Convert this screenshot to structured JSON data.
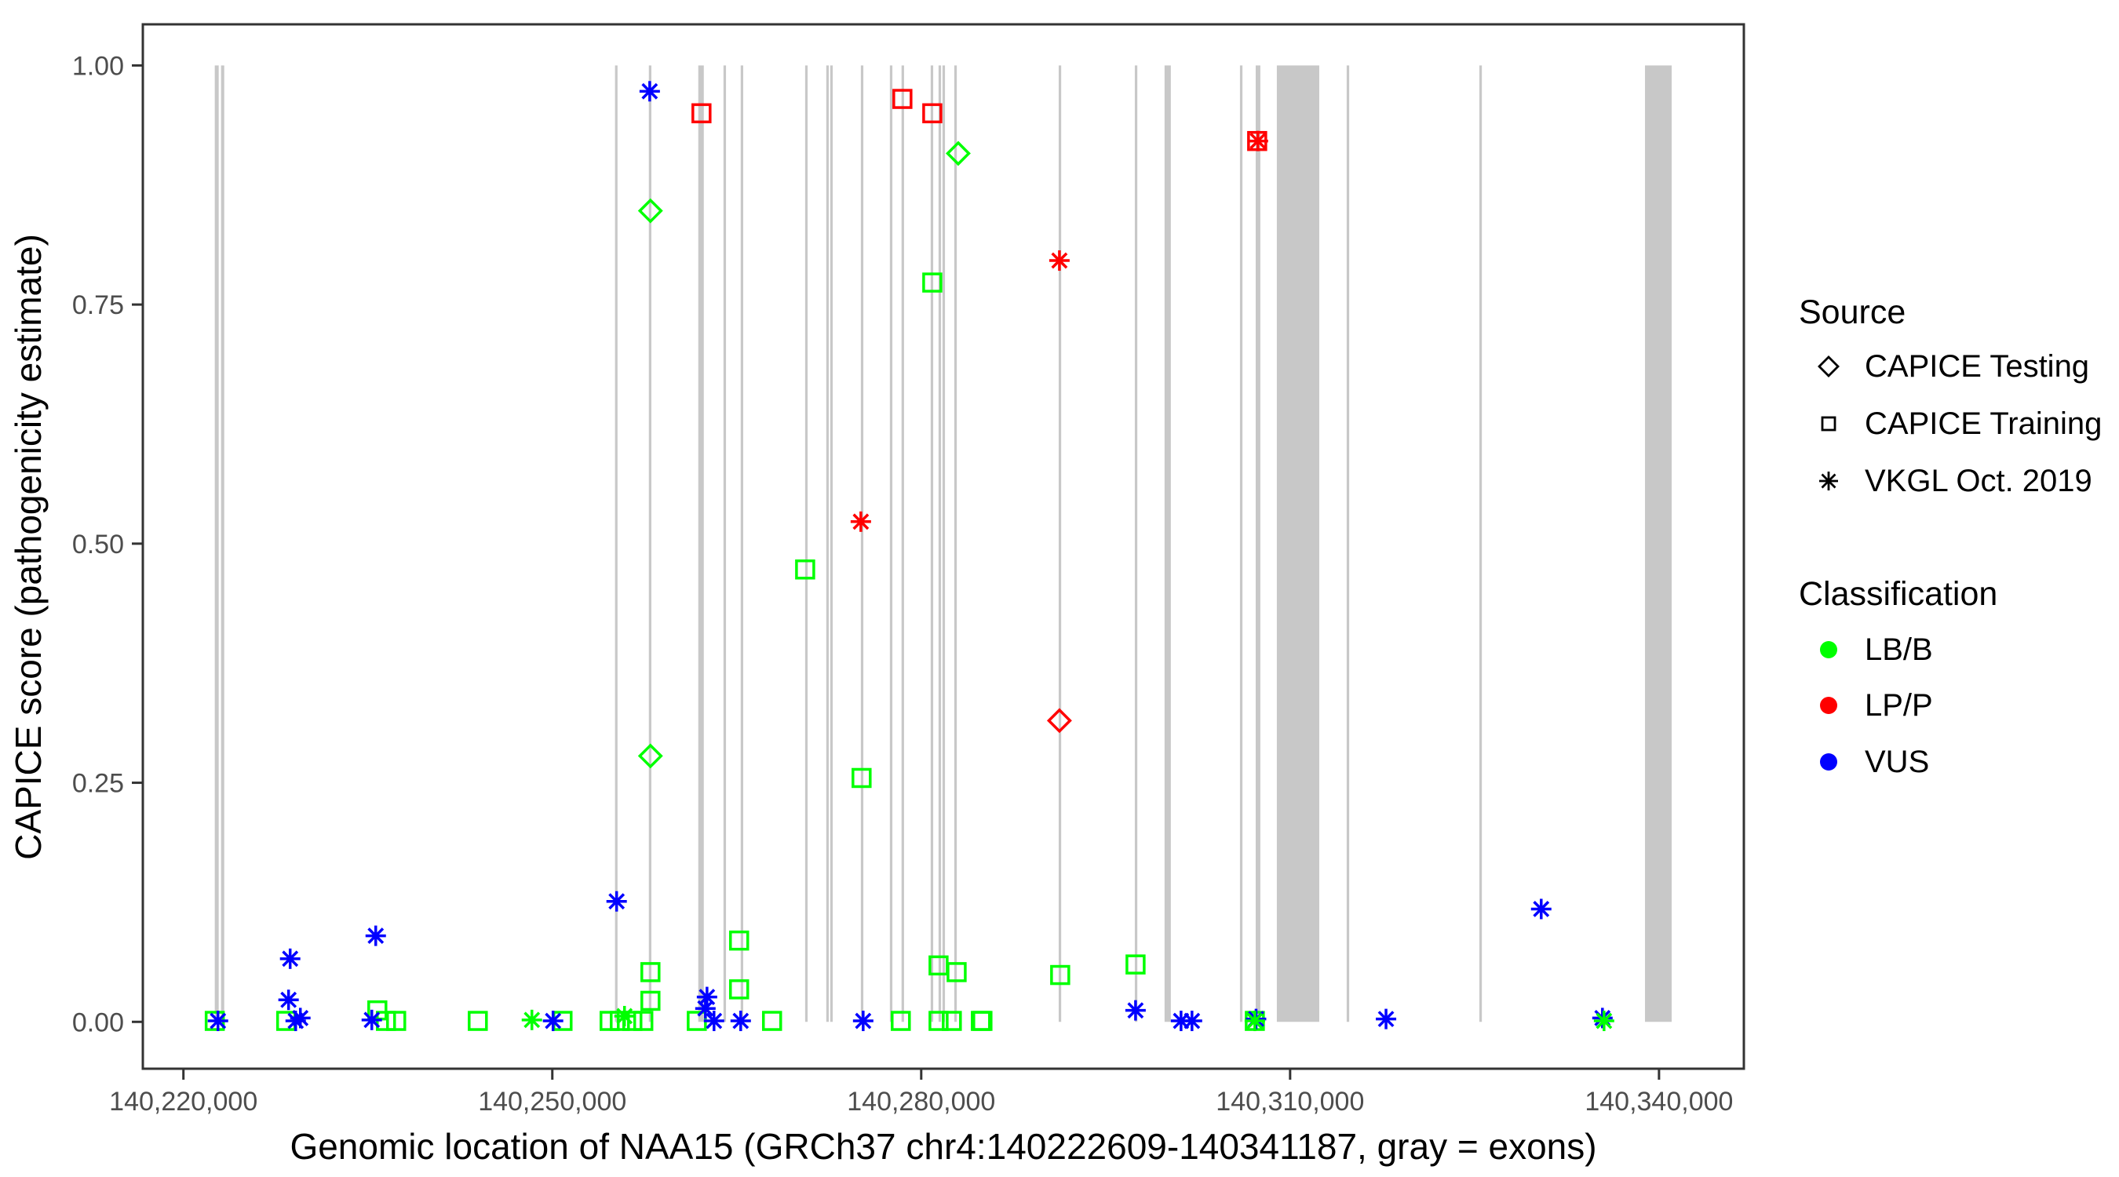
{
  "chart_data": {
    "type": "scatter",
    "title": "",
    "xlabel": "Genomic location of NAA15 (GRCh37 chr4:140222609-140341187, gray = exons)",
    "ylabel": "CAPICE score (pathogenicity estimate)",
    "xlim": [
      140216700,
      140346900
    ],
    "ylim": [
      -0.049,
      1.043
    ],
    "grid": false,
    "legend_position": "right",
    "x_ticks": {
      "values": [
        140220000,
        140250000,
        140280000,
        140310000,
        140340000
      ],
      "labels": [
        "140,220,000",
        "140,250,000",
        "140,280,000",
        "140,310,000",
        "140,340,000"
      ]
    },
    "y_ticks": {
      "values": [
        0,
        0.25,
        0.5,
        0.75,
        1.0
      ],
      "labels": [
        "0.00",
        "0.25",
        "0.50",
        "0.75",
        "1.00"
      ]
    },
    "exon_color": "#C8C8C8",
    "exon_value_span": [
      0,
      1
    ],
    "exons": [
      [
        140222550,
        140222870
      ],
      [
        140223060,
        140223320
      ],
      [
        140255100,
        140255300
      ],
      [
        140257850,
        140258040
      ],
      [
        140261870,
        140262320
      ],
      [
        140263920,
        140264110
      ],
      [
        140265320,
        140265510
      ],
      [
        140270560,
        140270750
      ],
      [
        140272280,
        140272470
      ],
      [
        140272600,
        140272790
      ],
      [
        140275090,
        140275280
      ],
      [
        140277450,
        140277640
      ],
      [
        140278400,
        140278600
      ],
      [
        140280770,
        140280960
      ],
      [
        140281410,
        140281600
      ],
      [
        140281730,
        140281920
      ],
      [
        140282690,
        140282880
      ],
      [
        140291180,
        140291370
      ],
      [
        140297370,
        140297560
      ],
      [
        140299790,
        140300300
      ],
      [
        140305920,
        140306110
      ],
      [
        140307200,
        140307580
      ],
      [
        140308920,
        140312370
      ],
      [
        140314600,
        140314790
      ],
      [
        140325390,
        140325580
      ],
      [
        140338860,
        140341030
      ]
    ],
    "class_colors": {
      "LB/B": "#00FF00",
      "LP/P": "#FF0000",
      "VUS": "#0000FF"
    },
    "source_shapes": {
      "CAPICE Testing": "diamond",
      "CAPICE Training": "square",
      "VKGL Oct. 2019": "asterisk"
    },
    "points": [
      {
        "g": 140222550,
        "score": 0.001,
        "source": "CAPICE Training",
        "classification": "LB/B"
      },
      {
        "g": 140228360,
        "score": 0.001,
        "source": "CAPICE Training",
        "classification": "LB/B"
      },
      {
        "g": 140235770,
        "score": 0.012,
        "source": "CAPICE Training",
        "classification": "LB/B"
      },
      {
        "g": 140236470,
        "score": 0.001,
        "source": "CAPICE Training",
        "classification": "LB/B"
      },
      {
        "g": 140237300,
        "score": 0.001,
        "source": "CAPICE Training",
        "classification": "LB/B"
      },
      {
        "g": 140243940,
        "score": 0.001,
        "source": "CAPICE Training",
        "classification": "LB/B"
      },
      {
        "g": 140250830,
        "score": 0.001,
        "source": "CAPICE Training",
        "classification": "LB/B"
      },
      {
        "g": 140254660,
        "score": 0.001,
        "source": "CAPICE Training",
        "classification": "LB/B"
      },
      {
        "g": 140255490,
        "score": 0.001,
        "source": "CAPICE Training",
        "classification": "LB/B"
      },
      {
        "g": 140256510,
        "score": 0.001,
        "source": "CAPICE Training",
        "classification": "LB/B"
      },
      {
        "g": 140257400,
        "score": 0.001,
        "source": "CAPICE Training",
        "classification": "LB/B"
      },
      {
        "g": 140257980,
        "score": 0.052,
        "source": "CAPICE Training",
        "classification": "LB/B"
      },
      {
        "g": 140257980,
        "score": 0.022,
        "source": "CAPICE Training",
        "classification": "LB/B"
      },
      {
        "g": 140261750,
        "score": 0.001,
        "source": "CAPICE Training",
        "classification": "LB/B"
      },
      {
        "g": 140265190,
        "score": 0.085,
        "source": "CAPICE Training",
        "classification": "LB/B"
      },
      {
        "g": 140265190,
        "score": 0.034,
        "source": "CAPICE Training",
        "classification": "LB/B"
      },
      {
        "g": 140267870,
        "score": 0.001,
        "source": "CAPICE Training",
        "classification": "LB/B"
      },
      {
        "g": 140270560,
        "score": 0.473,
        "source": "CAPICE Training",
        "classification": "LB/B"
      },
      {
        "g": 140275150,
        "score": 0.255,
        "source": "CAPICE Training",
        "classification": "LB/B"
      },
      {
        "g": 140278340,
        "score": 0.001,
        "source": "CAPICE Training",
        "classification": "LB/B"
      },
      {
        "g": 140280900,
        "score": 0.773,
        "source": "CAPICE Training",
        "classification": "LB/B"
      },
      {
        "g": 140281410,
        "score": 0.059,
        "source": "CAPICE Training",
        "classification": "LB/B"
      },
      {
        "g": 140282880,
        "score": 0.052,
        "source": "CAPICE Training",
        "classification": "LB/B"
      },
      {
        "g": 140281410,
        "score": 0.001,
        "source": "CAPICE Training",
        "classification": "LB/B"
      },
      {
        "g": 140282490,
        "score": 0.001,
        "source": "CAPICE Training",
        "classification": "LB/B"
      },
      {
        "g": 140284850,
        "score": 0.001,
        "source": "CAPICE Training",
        "classification": "LB/B"
      },
      {
        "g": 140284980,
        "score": 0.001,
        "source": "CAPICE Training",
        "classification": "LB/B"
      },
      {
        "g": 140291300,
        "score": 0.049,
        "source": "CAPICE Training",
        "classification": "LB/B"
      },
      {
        "g": 140297430,
        "score": 0.06,
        "source": "CAPICE Training",
        "classification": "LB/B"
      },
      {
        "g": 140307130,
        "score": 0.001,
        "source": "CAPICE Training",
        "classification": "LB/B"
      },
      {
        "g": 140262130,
        "score": 0.95,
        "source": "CAPICE Training",
        "classification": "LP/P"
      },
      {
        "g": 140278470,
        "score": 0.965,
        "source": "CAPICE Training",
        "classification": "LP/P"
      },
      {
        "g": 140280900,
        "score": 0.95,
        "source": "CAPICE Training",
        "classification": "LP/P"
      },
      {
        "g": 140307320,
        "score": 0.921,
        "source": "CAPICE Training",
        "classification": "LP/P"
      },
      {
        "g": 140257980,
        "score": 0.848,
        "source": "CAPICE Testing",
        "classification": "LB/B"
      },
      {
        "g": 140257980,
        "score": 0.278,
        "source": "CAPICE Testing",
        "classification": "LB/B"
      },
      {
        "g": 140283010,
        "score": 0.908,
        "source": "CAPICE Testing",
        "classification": "LB/B"
      },
      {
        "g": 140291240,
        "score": 0.315,
        "source": "CAPICE Testing",
        "classification": "LP/P"
      },
      {
        "g": 140222810,
        "score": 0.001,
        "source": "VKGL Oct. 2019",
        "classification": "VUS"
      },
      {
        "g": 140228550,
        "score": 0.023,
        "source": "VKGL Oct. 2019",
        "classification": "VUS"
      },
      {
        "g": 140228680,
        "score": 0.066,
        "source": "VKGL Oct. 2019",
        "classification": "VUS"
      },
      {
        "g": 140229130,
        "score": 0.001,
        "source": "VKGL Oct. 2019",
        "classification": "VUS"
      },
      {
        "g": 140229510,
        "score": 0.004,
        "source": "VKGL Oct. 2019",
        "classification": "VUS"
      },
      {
        "g": 140235320,
        "score": 0.002,
        "source": "VKGL Oct. 2019",
        "classification": "VUS"
      },
      {
        "g": 140235640,
        "score": 0.09,
        "source": "VKGL Oct. 2019",
        "classification": "VUS"
      },
      {
        "g": 140250060,
        "score": 0.001,
        "source": "VKGL Oct. 2019",
        "classification": "VUS"
      },
      {
        "g": 140255230,
        "score": 0.126,
        "source": "VKGL Oct. 2019",
        "classification": "VUS"
      },
      {
        "g": 140257920,
        "score": 0.973,
        "source": "VKGL Oct. 2019",
        "classification": "VUS"
      },
      {
        "g": 140262450,
        "score": 0.014,
        "source": "VKGL Oct. 2019",
        "classification": "VUS"
      },
      {
        "g": 140262580,
        "score": 0.026,
        "source": "VKGL Oct. 2019",
        "classification": "VUS"
      },
      {
        "g": 140263150,
        "score": 0.001,
        "source": "VKGL Oct. 2019",
        "classification": "VUS"
      },
      {
        "g": 140265320,
        "score": 0.001,
        "source": "VKGL Oct. 2019",
        "classification": "VUS"
      },
      {
        "g": 140275280,
        "score": 0.001,
        "source": "VKGL Oct. 2019",
        "classification": "VUS"
      },
      {
        "g": 140297430,
        "score": 0.012,
        "source": "VKGL Oct. 2019",
        "classification": "VUS"
      },
      {
        "g": 140301130,
        "score": 0.001,
        "source": "VKGL Oct. 2019",
        "classification": "VUS"
      },
      {
        "g": 140302020,
        "score": 0.001,
        "source": "VKGL Oct. 2019",
        "classification": "VUS"
      },
      {
        "g": 140307230,
        "score": 0.003,
        "source": "VKGL Oct. 2019",
        "classification": "VUS"
      },
      {
        "g": 140317800,
        "score": 0.003,
        "source": "VKGL Oct. 2019",
        "classification": "VUS"
      },
      {
        "g": 140330420,
        "score": 0.118,
        "source": "VKGL Oct. 2019",
        "classification": "VUS"
      },
      {
        "g": 140335400,
        "score": 0.004,
        "source": "VKGL Oct. 2019",
        "classification": "VUS"
      },
      {
        "g": 140248340,
        "score": 0.002,
        "source": "VKGL Oct. 2019",
        "classification": "LB/B"
      },
      {
        "g": 140255870,
        "score": 0.006,
        "source": "VKGL Oct. 2019",
        "classification": "LB/B"
      },
      {
        "g": 140307130,
        "score": 0.001,
        "source": "VKGL Oct. 2019",
        "classification": "LB/B"
      },
      {
        "g": 140335530,
        "score": 0.001,
        "source": "VKGL Oct. 2019",
        "classification": "LB/B"
      },
      {
        "g": 140275090,
        "score": 0.523,
        "source": "VKGL Oct. 2019",
        "classification": "LP/P"
      },
      {
        "g": 140291240,
        "score": 0.796,
        "source": "VKGL Oct. 2019",
        "classification": "LP/P"
      },
      {
        "g": 140307380,
        "score": 0.921,
        "source": "VKGL Oct. 2019",
        "classification": "LP/P"
      }
    ],
    "legend": {
      "source_title": "Source",
      "source_items": [
        {
          "label": "CAPICE Testing",
          "shape": "diamond"
        },
        {
          "label": "CAPICE Training",
          "shape": "square"
        },
        {
          "label": "VKGL Oct. 2019",
          "shape": "asterisk"
        }
      ],
      "classification_title": "Classification",
      "classification_items": [
        {
          "label": "LB/B",
          "color": "#00FF00"
        },
        {
          "label": "LP/P",
          "color": "#FF0000"
        },
        {
          "label": "VUS",
          "color": "#0000FF"
        }
      ]
    }
  }
}
